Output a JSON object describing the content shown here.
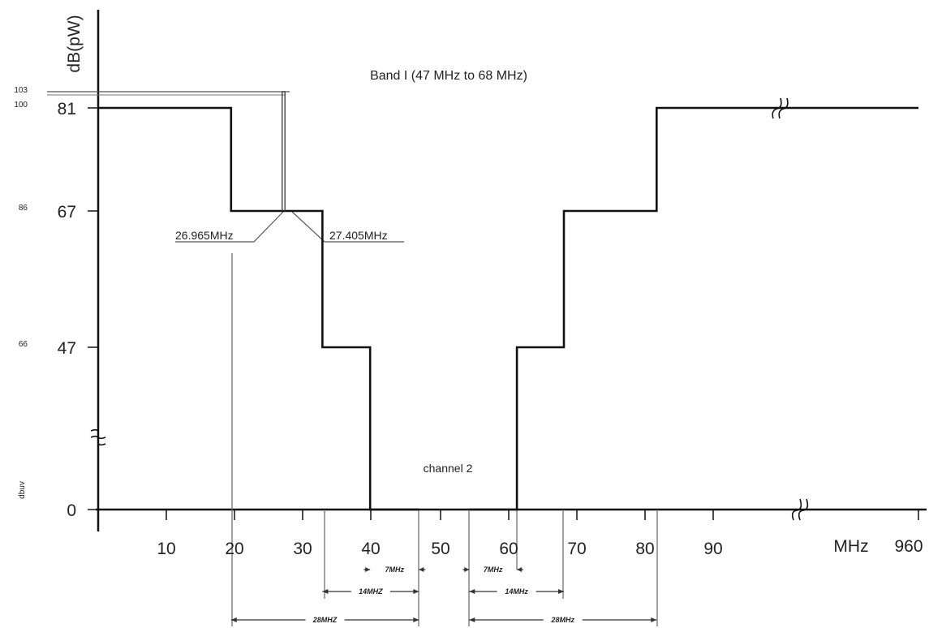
{
  "chart_data": {
    "type": "line",
    "title": "Band I (47 MHz to 68 MHz)",
    "ylabel": "dB(pW)",
    "xlabel": "MHz",
    "y_unit_small": "dbuv",
    "x_ticks": [
      10,
      20,
      30,
      40,
      50,
      60,
      70,
      80,
      90
    ],
    "x_end_label": "960",
    "y_ticks": [
      {
        "value": 0,
        "label": "0",
        "sub": ""
      },
      {
        "value": 47,
        "label": "47",
        "sub": "66"
      },
      {
        "value": 67,
        "label": "67",
        "sub": "86"
      },
      {
        "value": 81,
        "label": "81",
        "sub": "100"
      }
    ],
    "y_top_sub": "103",
    "y_top_value": 84,
    "xlim": [
      0,
      100
    ],
    "ylim": [
      0,
      81
    ],
    "series": [
      {
        "x": [
          0,
          19.5,
          19.5,
          32.9,
          32.9,
          39.9,
          39.9,
          46.9
        ],
        "y": [
          81,
          81,
          67,
          67,
          47,
          47,
          0,
          0
        ]
      },
      {
        "x": [
          54.2,
          61.2,
          61.2,
          68.1,
          68.1,
          81.7,
          81.7,
          100
        ],
        "y": [
          0,
          0,
          47,
          47,
          67,
          67,
          81,
          81
        ]
      },
      {
        "x": [
          27.0,
          27.0,
          27.4,
          27.4
        ],
        "y": [
          67,
          84,
          84,
          67
        ]
      }
    ],
    "annotations": [
      {
        "text": "26.965MHz",
        "x": 26.965,
        "y": 67
      },
      {
        "text": "27.405MHz",
        "x": 27.405,
        "y": 67
      },
      {
        "text": "channel 2",
        "x": 50.5,
        "y": 7
      }
    ],
    "spans": [
      {
        "label": "7MHz",
        "from": 39.9,
        "to": 46.9,
        "level": 1
      },
      {
        "label": "7MHz",
        "from": 54.2,
        "to": 61.2,
        "level": 1
      },
      {
        "label": "14MHZ",
        "from": 32.9,
        "to": 46.9,
        "level": 2
      },
      {
        "label": "14MHz",
        "from": 54.2,
        "to": 68.1,
        "level": 2
      },
      {
        "label": "28MHZ",
        "from": 19.5,
        "to": 46.9,
        "level": 3
      },
      {
        "label": "28MHz",
        "from": 54.2,
        "to": 81.7,
        "level": 3
      }
    ],
    "axis_break_marks": [
      "y-axis",
      "x-axis near 90",
      "top line near 90"
    ],
    "grid": false,
    "legend": "none"
  }
}
